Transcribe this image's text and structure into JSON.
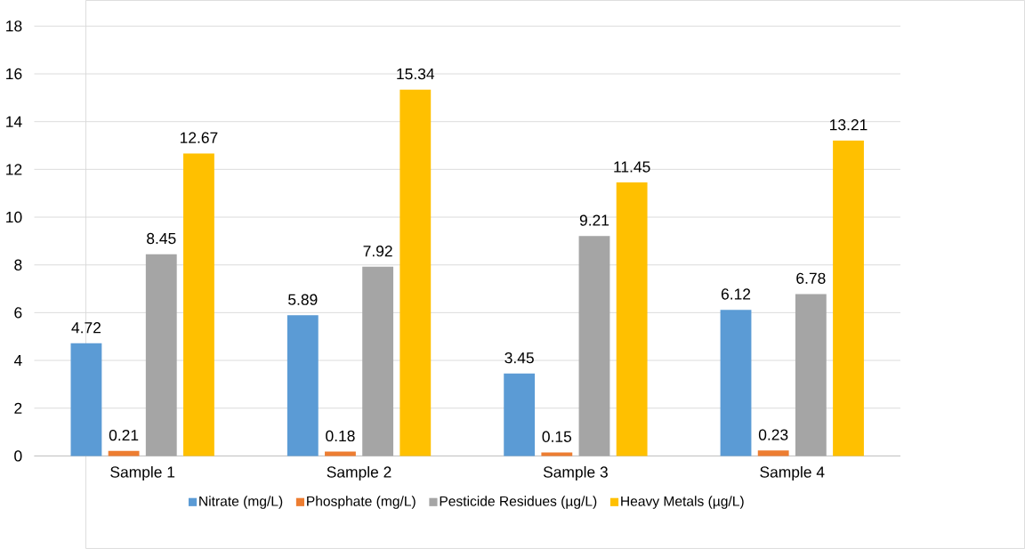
{
  "chart_data": {
    "type": "bar",
    "categories": [
      "Sample 1",
      "Sample 2",
      "Sample 3",
      "Sample 4"
    ],
    "series": [
      {
        "name": "Nitrate (mg/L)",
        "color": "#5b9bd5",
        "values": [
          4.72,
          5.89,
          3.45,
          6.12
        ]
      },
      {
        "name": "Phosphate (mg/L)",
        "color": "#ed7d31",
        "values": [
          0.21,
          0.18,
          0.15,
          0.23
        ]
      },
      {
        "name": "Pesticide Residues (µg/L)",
        "color": "#a5a5a5",
        "values": [
          8.45,
          7.92,
          9.21,
          6.78
        ]
      },
      {
        "name": "Heavy Metals (µg/L)",
        "color": "#ffc000",
        "values": [
          12.67,
          15.34,
          11.45,
          13.21
        ]
      }
    ],
    "ylim": [
      0,
      18
    ],
    "yticks": [
      0,
      2,
      4,
      6,
      8,
      10,
      12,
      14,
      16,
      18
    ],
    "grid": "y",
    "legend": "bottom",
    "data_labels": true
  }
}
